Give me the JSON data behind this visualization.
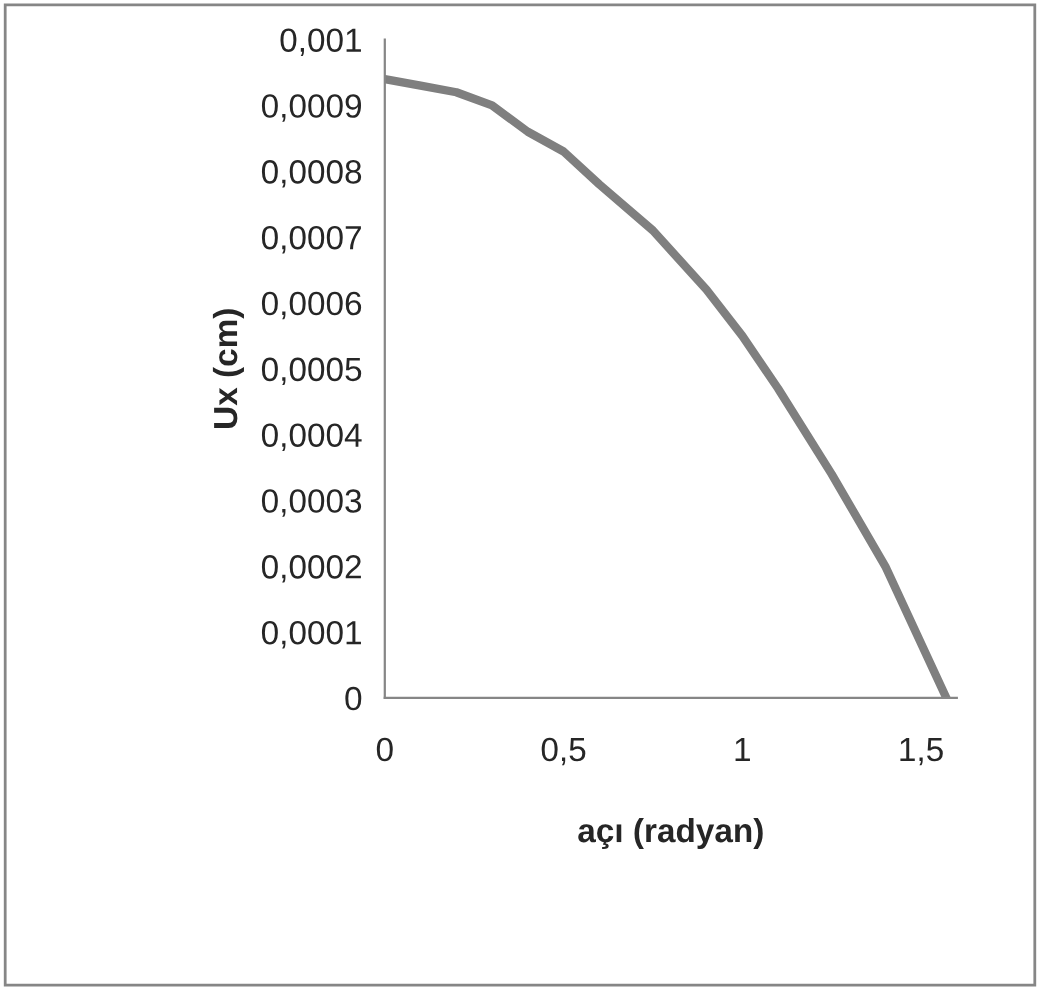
{
  "chart_data": {
    "type": "line",
    "xlabel": "açı (radyan)",
    "ylabel": "Ux (cm)",
    "x": [
      0,
      0.1,
      0.2,
      0.3,
      0.35,
      0.4,
      0.5,
      0.6,
      0.75,
      0.9,
      1.0,
      1.1,
      1.25,
      1.4,
      1.5708
    ],
    "series": [
      {
        "color": "#7f7f7f",
        "values": [
          0.00094,
          0.00093,
          0.00092,
          0.0009,
          0.00088,
          0.00086,
          0.00083,
          0.00078,
          0.00071,
          0.00062,
          0.00055,
          0.00047,
          0.00034,
          0.0002,
          0.0
        ]
      }
    ],
    "xlim": [
      0,
      1.6
    ],
    "ylim": [
      0,
      0.001
    ],
    "xticks": [
      0,
      {
        "value": 0.5,
        "label": "0,5"
      },
      1,
      {
        "value": 1.5,
        "label": "1,5"
      }
    ],
    "yticks": [
      0,
      {
        "value": 0.0001,
        "label": "0,0001"
      },
      {
        "value": 0.0002,
        "label": "0,0002"
      },
      {
        "value": 0.0003,
        "label": "0,0003"
      },
      {
        "value": 0.0004,
        "label": "0,0004"
      },
      {
        "value": 0.0005,
        "label": "0,0005"
      },
      {
        "value": 0.0006,
        "label": "0,0006"
      },
      {
        "value": 0.0007,
        "label": "0,0007"
      },
      {
        "value": 0.0008,
        "label": "0,0008"
      },
      {
        "value": 0.0009,
        "label": "0,0009"
      },
      {
        "value": 0.001,
        "label": "0,001"
      }
    ],
    "grid": false,
    "legend": false,
    "marker": "none",
    "line_style": "solid"
  }
}
